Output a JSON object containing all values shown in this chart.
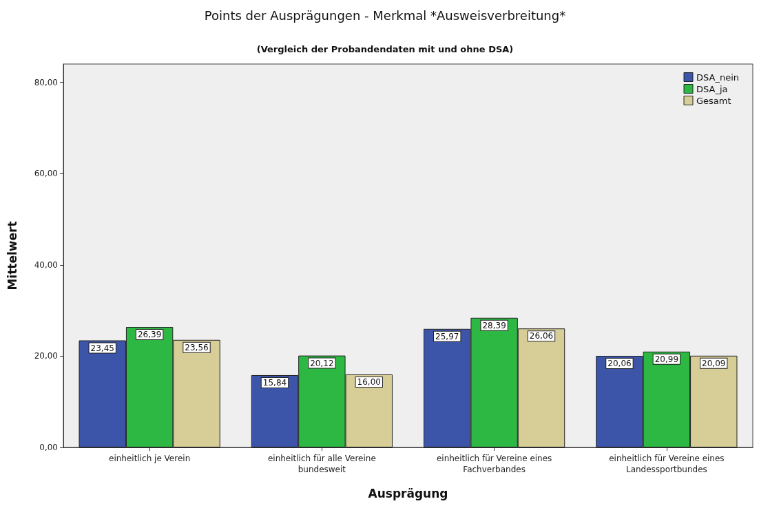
{
  "chart_data": {
    "type": "bar",
    "title": "Points der Ausprägungen - Merkmal *Ausweisverbreitung*",
    "subtitle": "(Vergleich der Probandendaten mit und ohne DSA)",
    "xlabel": "Ausprägung",
    "ylabel": "Mittelwert",
    "categories": [
      "einheitlich je Verein",
      "einheitlich für alle Vereine\nbundesweit",
      "einheitlich für Vereine eines\nFachverbandes",
      "einheitlich für Vereine eines\nLandessportbundes"
    ],
    "series": [
      {
        "name": "DSA_nein",
        "color": "#3d55a8",
        "values": [
          23.45,
          15.84,
          25.97,
          20.06
        ],
        "value_labels": [
          "23,45",
          "15,84",
          "25,97",
          "20,06"
        ]
      },
      {
        "name": "DSA_ja",
        "color": "#2db843",
        "values": [
          26.39,
          20.12,
          28.39,
          20.99
        ],
        "value_labels": [
          "26,39",
          "20,12",
          "28,39",
          "20,99"
        ]
      },
      {
        "name": "Gesamt",
        "color": "#d6cd97",
        "values": [
          23.56,
          16.0,
          26.06,
          20.09
        ],
        "value_labels": [
          "23,56",
          "16,00",
          "26,06",
          "20,09"
        ]
      }
    ],
    "ylim": [
      0,
      84
    ],
    "yticks": [
      {
        "value": 0,
        "label": "0,00"
      },
      {
        "value": 20,
        "label": "20,00"
      },
      {
        "value": 40,
        "label": "40,00"
      },
      {
        "value": 60,
        "label": "60,00"
      },
      {
        "value": 80,
        "label": "80,00"
      }
    ],
    "grid": false,
    "legend": "top right"
  }
}
